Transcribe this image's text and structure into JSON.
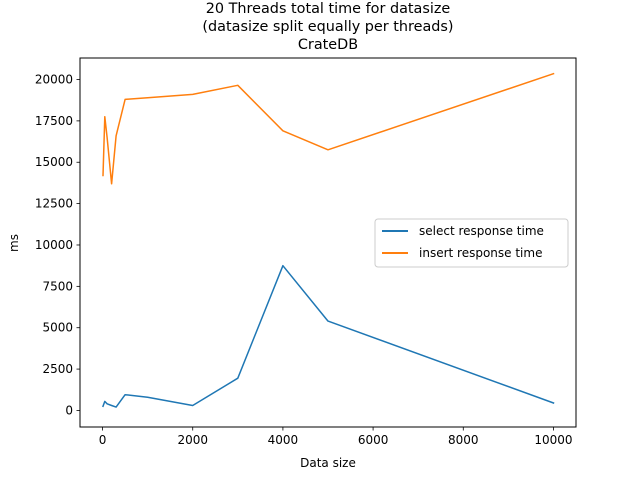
{
  "chart_data": {
    "type": "line",
    "title": [
      "20 Threads total time for datasize",
      "(datasize split equally per threads)",
      "CrateDB"
    ],
    "xlabel": "Data size",
    "ylabel": "ms",
    "xlim": [
      -500,
      10500
    ],
    "ylim": [
      -1000,
      21300
    ],
    "xticks": [
      0,
      2000,
      4000,
      6000,
      8000,
      10000
    ],
    "yticks": [
      0,
      2500,
      5000,
      7500,
      10000,
      12500,
      15000,
      17500,
      20000
    ],
    "grid": false,
    "legend_position": "center-right",
    "series": [
      {
        "name": "select response time",
        "color": "#1f77b4",
        "x": [
          10,
          50,
          100,
          200,
          300,
          500,
          1000,
          2000,
          3000,
          4000,
          5000,
          10000
        ],
        "y": [
          250,
          550,
          400,
          300,
          200,
          950,
          800,
          300,
          1950,
          8750,
          5400,
          450
        ]
      },
      {
        "name": "insert response time",
        "color": "#ff7f0e",
        "x": [
          10,
          50,
          100,
          200,
          300,
          500,
          1000,
          2000,
          3000,
          4000,
          5000,
          10000
        ],
        "y": [
          14200,
          17750,
          16500,
          13700,
          16600,
          18800,
          18900,
          19100,
          19650,
          16900,
          15750,
          20350
        ]
      }
    ]
  }
}
